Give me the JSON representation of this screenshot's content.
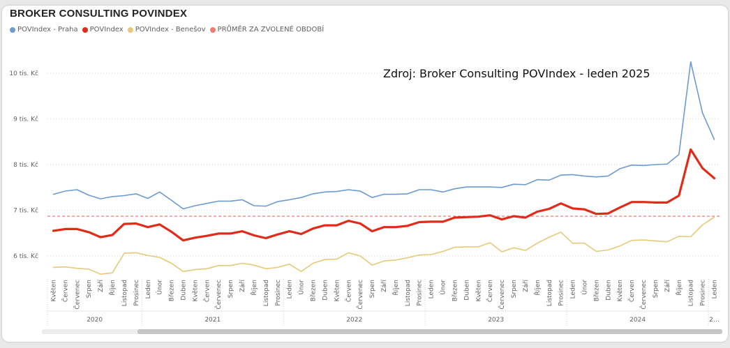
{
  "title": "BROKER CONSULTING POVINDEX",
  "legend": [
    {
      "label": "POVIndex - Praha",
      "color": "#6b9bd2"
    },
    {
      "label": "POVIndex",
      "color": "#e12b18"
    },
    {
      "label": "POVIndex - Benešov",
      "color": "#e8c97a"
    },
    {
      "label": "PRŮMĚR ZA ZVOLENÉ OBDOBÍ",
      "color": "#f07a72"
    }
  ],
  "annotation": "Zdroj: Broker Consulting POVIndex - leden 2025",
  "chart_data": {
    "type": "line",
    "title": "BROKER CONSULTING POVINDEX",
    "ylim": [
      5.5,
      10.5
    ],
    "yticks": [
      6,
      7,
      8,
      9,
      10
    ],
    "ytick_labels": [
      "6 tis. Kč",
      "7 tis. Kč",
      "8 tis. Kč",
      "9 tis. Kč",
      "10 tis. Kč"
    ],
    "grid": true,
    "legend_position": "top-left",
    "categories": [
      "Květen",
      "Červen",
      "Červenec",
      "Srpen",
      "Září",
      "Říjen",
      "Listopad",
      "Prosinec",
      "Leden",
      "Únor",
      "Březen",
      "Duben",
      "Květen",
      "Červen",
      "Červenec",
      "Srpen",
      "Září",
      "Říjen",
      "Listopad",
      "Prosinec",
      "Leden",
      "Únor",
      "Březen",
      "Duben",
      "Květen",
      "Červen",
      "Červenec",
      "Srpen",
      "Září",
      "Říjen",
      "Listopad",
      "Prosinec",
      "Leden",
      "Únor",
      "Březen",
      "Duben",
      "Květen",
      "Červen",
      "Červenec",
      "Srpen",
      "Září",
      "Říjen",
      "Listopad",
      "Prosinec",
      "Leden",
      "Únor",
      "Březen",
      "Duben",
      "Květen",
      "Červen",
      "Červenec",
      "Srpen",
      "Září",
      "Říjen",
      "Listopad",
      "Prosinec",
      "Leden"
    ],
    "year_groups": [
      {
        "label": "2020",
        "count": 8
      },
      {
        "label": "2021",
        "count": 12
      },
      {
        "label": "2022",
        "count": 12
      },
      {
        "label": "2023",
        "count": 12
      },
      {
        "label": "2024",
        "count": 12
      },
      {
        "label": "2…",
        "count": 1
      }
    ],
    "series": [
      {
        "name": "POVIndex - Praha",
        "color": "#6b9bd2",
        "width": 1.6,
        "values": [
          7.35,
          7.42,
          7.45,
          7.33,
          7.25,
          7.3,
          7.32,
          7.36,
          7.26,
          7.4,
          7.22,
          7.03,
          7.1,
          7.15,
          7.2,
          7.2,
          7.23,
          7.1,
          7.09,
          7.19,
          7.23,
          7.28,
          7.36,
          7.4,
          7.41,
          7.45,
          7.42,
          7.28,
          7.35,
          7.35,
          7.36,
          7.45,
          7.45,
          7.4,
          7.47,
          7.51,
          7.51,
          7.51,
          7.5,
          7.57,
          7.56,
          7.67,
          7.66,
          7.77,
          7.78,
          7.75,
          7.73,
          7.75,
          7.91,
          7.99,
          7.98,
          8.0,
          8.01,
          8.22,
          10.25,
          9.13,
          8.55
        ]
      },
      {
        "name": "POVIndex",
        "color": "#e12b18",
        "width": 3.2,
        "values": [
          6.55,
          6.59,
          6.59,
          6.52,
          6.41,
          6.46,
          6.7,
          6.71,
          6.63,
          6.69,
          6.53,
          6.34,
          6.4,
          6.44,
          6.49,
          6.49,
          6.54,
          6.45,
          6.39,
          6.47,
          6.54,
          6.48,
          6.6,
          6.67,
          6.67,
          6.77,
          6.71,
          6.54,
          6.63,
          6.63,
          6.66,
          6.74,
          6.75,
          6.75,
          6.84,
          6.85,
          6.86,
          6.89,
          6.8,
          6.87,
          6.84,
          6.97,
          7.03,
          7.15,
          7.04,
          7.02,
          6.92,
          6.93,
          7.06,
          7.18,
          7.18,
          7.17,
          7.17,
          7.32,
          8.33,
          7.92,
          7.7
        ]
      },
      {
        "name": "POVIndex - Benešov",
        "color": "#e8c97a",
        "width": 1.6,
        "values": [
          5.75,
          5.76,
          5.73,
          5.71,
          5.6,
          5.63,
          6.06,
          6.07,
          6.01,
          5.97,
          5.84,
          5.66,
          5.7,
          5.72,
          5.79,
          5.79,
          5.84,
          5.8,
          5.72,
          5.75,
          5.82,
          5.66,
          5.84,
          5.92,
          5.93,
          6.07,
          6.0,
          5.8,
          5.89,
          5.91,
          5.96,
          6.02,
          6.03,
          6.1,
          6.19,
          6.2,
          6.2,
          6.29,
          6.09,
          6.18,
          6.12,
          6.28,
          6.41,
          6.52,
          6.28,
          6.28,
          6.1,
          6.13,
          6.22,
          6.34,
          6.35,
          6.33,
          6.31,
          6.43,
          6.42,
          6.68,
          6.85
        ]
      }
    ],
    "average": {
      "name": "PRŮMĚR ZA ZVOLENÉ OBDOBÍ",
      "value": 6.87,
      "color": "#f07a72"
    }
  }
}
